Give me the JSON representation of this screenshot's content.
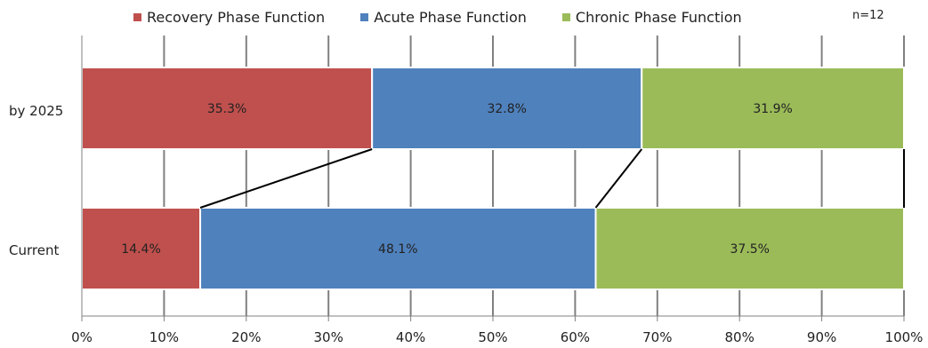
{
  "chart_data": {
    "type": "bar",
    "orientation": "horizontal",
    "stacked": true,
    "normalized": true,
    "categories": [
      "by 2025",
      "Current"
    ],
    "series": [
      {
        "name": "Recovery Phase Function",
        "values": [
          35.3,
          14.4
        ],
        "labels": [
          "35.3%",
          "14.4%"
        ],
        "color": "#C0504D"
      },
      {
        "name": "Acute Phase Function",
        "values": [
          32.8,
          48.1
        ],
        "labels": [
          "32.8%",
          "48.1%"
        ],
        "color": "#4F81BD"
      },
      {
        "name": "Chronic Phase Function",
        "values": [
          31.9,
          37.5
        ],
        "labels": [
          "31.9%",
          "37.5%"
        ],
        "color": "#9BBB59"
      }
    ],
    "xlim": [
      0,
      100
    ],
    "x_ticks": [
      "0%",
      "10%",
      "20%",
      "30%",
      "40%",
      "50%",
      "60%",
      "70%",
      "80%",
      "90%",
      "100%"
    ],
    "grid": true,
    "legend_position": "top",
    "annotation": "n=12",
    "connector_lines": true
  }
}
